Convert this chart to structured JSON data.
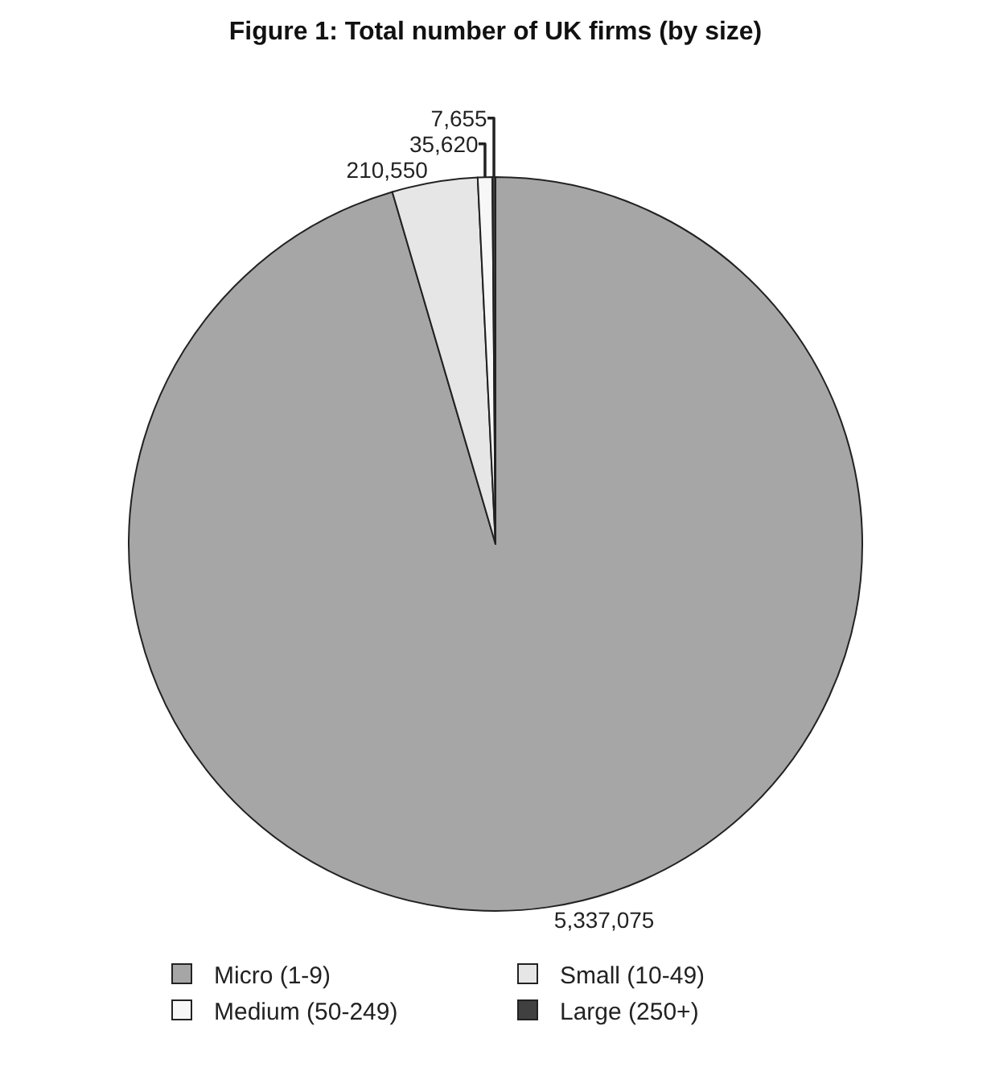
{
  "chart_data": {
    "type": "pie",
    "title": "Figure 1: Total number of UK firms (by size)",
    "categories": [
      "Micro (1-9)",
      "Small (10-49)",
      "Medium (50-249)",
      "Large (250+)"
    ],
    "values": [
      5337075,
      210550,
      35620,
      7655
    ],
    "value_labels": [
      "5,337,075",
      "210,550",
      "35,620",
      "7,655"
    ],
    "colors": [
      "#a6a6a6",
      "#e6e6e6",
      "#f7f7f7",
      "#404040"
    ],
    "legend": "bottom"
  }
}
